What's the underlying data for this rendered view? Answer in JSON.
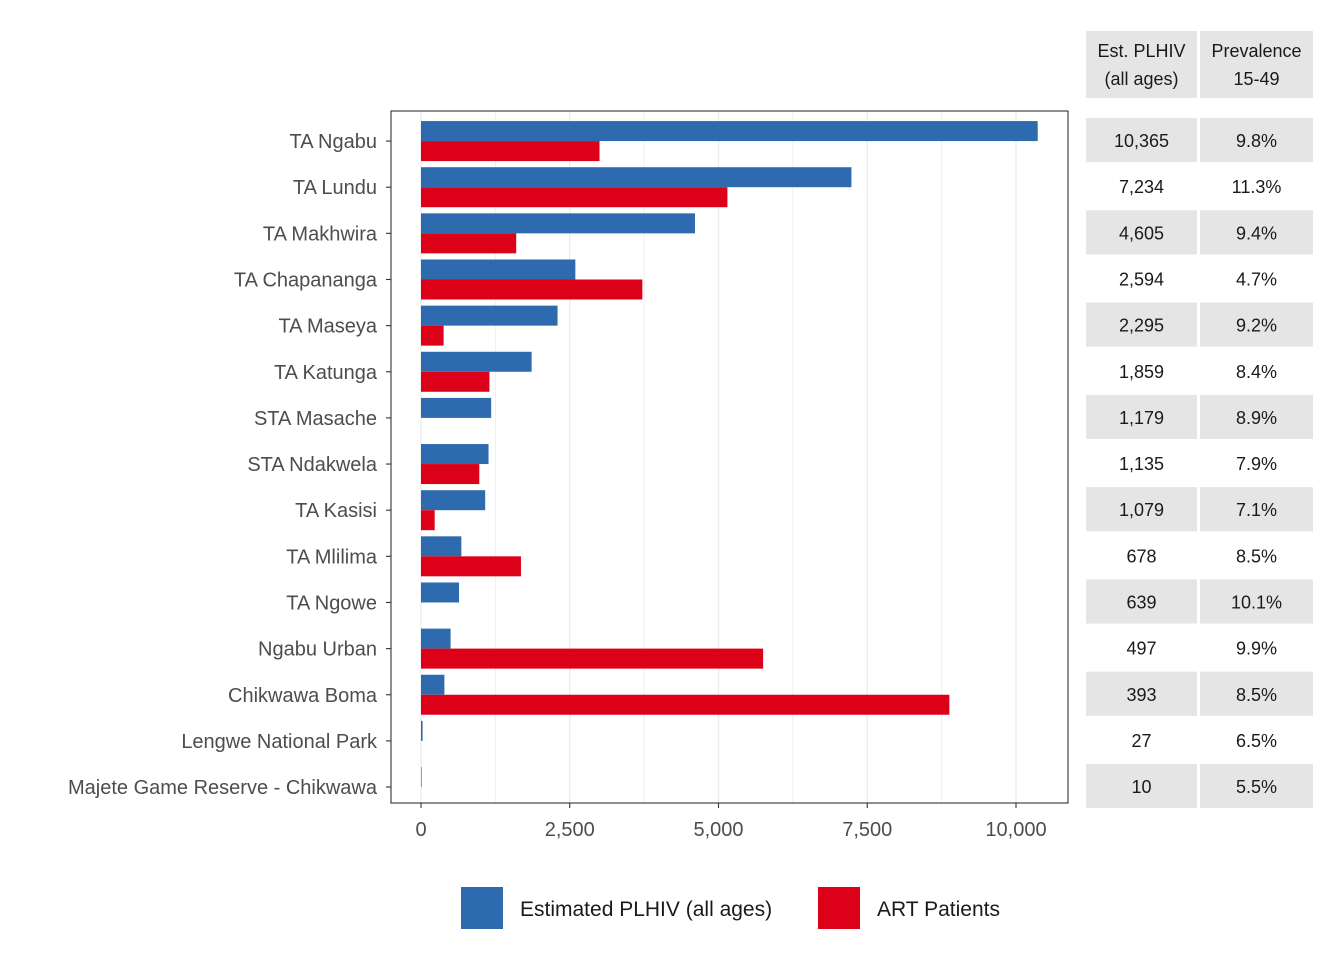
{
  "colors": {
    "plhiv": "#2E6BAE",
    "art": "#DC0018",
    "table_shade": "#E5E5E5",
    "grid": "#EBEBEB",
    "axis_text": "#4D4D4D"
  },
  "table": {
    "headers": [
      [
        "Est. PLHIV",
        "(all ages)"
      ],
      [
        "Prevalence",
        "15-49"
      ]
    ]
  },
  "legend": {
    "items": [
      "Estimated PLHIV (all ages)",
      "ART Patients"
    ]
  },
  "chart_data": {
    "type": "bar",
    "orientation": "horizontal",
    "categories": [
      "TA Ngabu",
      "TA Lundu",
      "TA Makhwira",
      "TA Chapananga",
      "TA Maseya",
      "TA Katunga",
      "STA Masache",
      "STA Ndakwela",
      "TA Kasisi",
      "TA Mlilima",
      "TA Ngowe",
      "Ngabu Urban",
      "Chikwawa Boma",
      "Lengwe National Park",
      "Majete Game Reserve - Chikwawa"
    ],
    "series": [
      {
        "name": "Estimated PLHIV (all ages)",
        "values": [
          10365,
          7234,
          4605,
          2594,
          2295,
          1859,
          1179,
          1135,
          1079,
          678,
          639,
          497,
          393,
          27,
          10
        ]
      },
      {
        "name": "ART Patients",
        "values": [
          3000,
          5150,
          1600,
          3720,
          380,
          1150,
          0,
          980,
          230,
          1680,
          0,
          5750,
          8880,
          0,
          0
        ]
      }
    ],
    "table_values": {
      "plhiv": [
        "10,365",
        "7,234",
        "4,605",
        "2,594",
        "2,295",
        "1,859",
        "1,179",
        "1,135",
        "1,079",
        "678",
        "639",
        "497",
        "393",
        "27",
        "10"
      ],
      "prevalence": [
        "9.8%",
        "11.3%",
        "9.4%",
        "4.7%",
        "9.2%",
        "8.4%",
        "8.9%",
        "7.9%",
        "7.1%",
        "8.5%",
        "10.1%",
        "9.9%",
        "8.5%",
        "6.5%",
        "5.5%"
      ]
    },
    "xlim": [
      -500,
      10900
    ],
    "xticks": [
      0,
      2500,
      5000,
      7500,
      10000
    ],
    "xtick_labels": [
      "0",
      "2,500",
      "5,000",
      "7,500",
      "10,000"
    ],
    "xlabel": "",
    "ylabel": "",
    "title": "",
    "grid": true,
    "legend_position": "bottom"
  }
}
